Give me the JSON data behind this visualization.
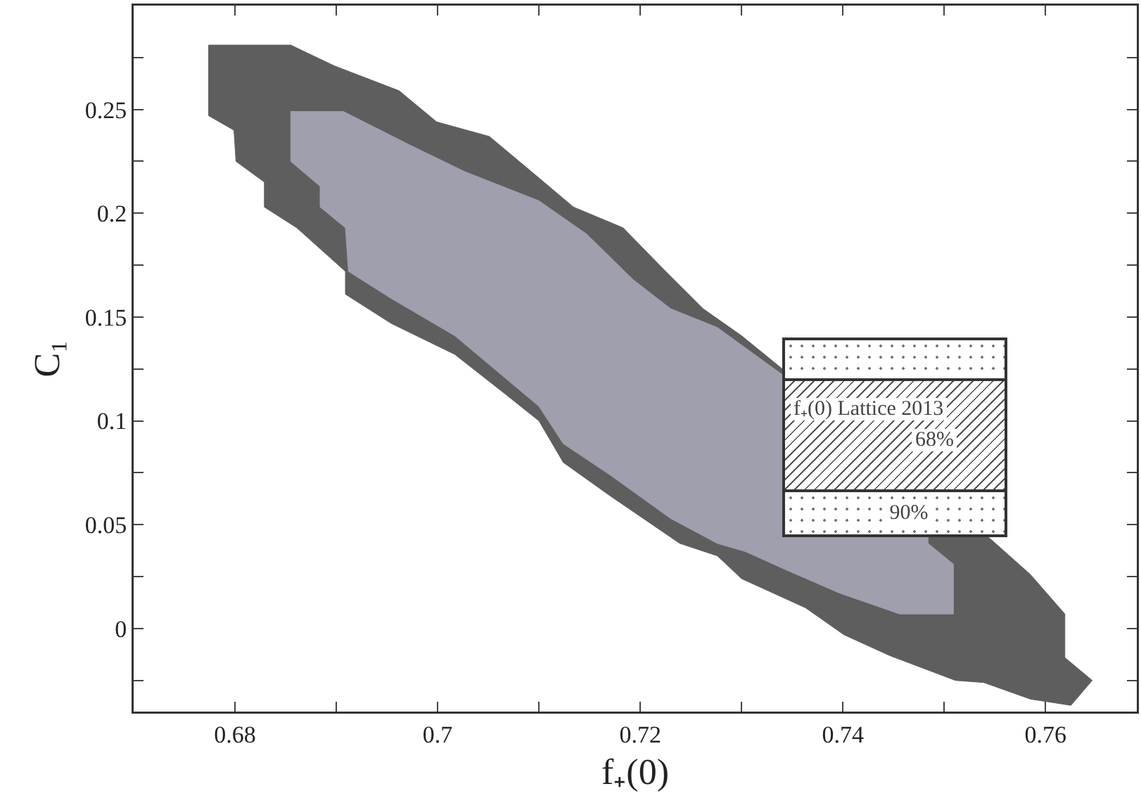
{
  "chart_data": {
    "type": "area",
    "xlabel": "f₊(0)",
    "ylabel": "C₁",
    "xlim": [
      0.67,
      0.769
    ],
    "ylim": [
      -0.04,
      0.3
    ],
    "xticks": [
      0.68,
      {
        "value": 0.69,
        "label": null
      },
      0.7,
      {
        "value": 0.71,
        "label": null
      },
      0.72,
      {
        "value": 0.73,
        "label": null
      },
      0.74,
      {
        "value": 0.75,
        "label": null
      },
      0.76
    ],
    "yticks": [
      {
        "value": -0.025,
        "label": null
      },
      0,
      {
        "value": 0.025,
        "label": null
      },
      0.05,
      {
        "value": 0.075,
        "label": null
      },
      0.1,
      {
        "value": 0.125,
        "label": null
      },
      0.15,
      {
        "value": 0.175,
        "label": null
      },
      0.2,
      {
        "value": 0.225,
        "label": null
      },
      0.25,
      {
        "value": 0.275,
        "label": null
      }
    ],
    "grid": false,
    "annotations": [
      "f₊(0) Lattice 2013",
      "68%",
      "90%"
    ],
    "series": [
      {
        "color": "#5e5e5e",
        "x": [
          0.6774,
          0.6855,
          0.6898,
          0.6962,
          0.6999,
          0.7051,
          0.71,
          0.7134,
          0.7183,
          0.7221,
          0.7262,
          0.73,
          0.7539,
          0.7585,
          0.7619,
          0.7619,
          0.7646,
          0.7625,
          0.7585,
          0.7539,
          0.7511,
          0.7446,
          0.7401,
          0.7363,
          0.73,
          0.7276,
          0.7239,
          0.717,
          0.7124,
          0.71,
          0.7064,
          0.7017,
          0.6954,
          0.6909,
          0.6909,
          0.6861,
          0.6829,
          0.6829,
          0.6801,
          0.6799,
          0.6774,
          0.6774
        ],
        "values": [
          0.281,
          0.281,
          0.271,
          0.259,
          0.244,
          0.237,
          0.217,
          0.203,
          0.193,
          0.174,
          0.154,
          0.141,
          0.046,
          0.026,
          0.007,
          -0.014,
          -0.025,
          -0.037,
          -0.034,
          -0.026,
          -0.025,
          -0.013,
          -0.003,
          0.01,
          0.024,
          0.035,
          0.041,
          0.064,
          0.08,
          0.1,
          0.114,
          0.132,
          0.147,
          0.161,
          0.172,
          0.193,
          0.203,
          0.215,
          0.225,
          0.24,
          0.247,
          0.281
        ]
      },
      {
        "color": "#a09fae",
        "x": [
          0.6855,
          0.6907,
          0.6972,
          0.7027,
          0.71,
          0.7147,
          0.7193,
          0.723,
          0.7276,
          0.7341,
          0.7484,
          0.7484,
          0.7509,
          0.7509,
          0.7456,
          0.7397,
          0.7345,
          0.7304,
          0.7276,
          0.723,
          0.717,
          0.7124,
          0.71,
          0.7078,
          0.7017,
          0.6954,
          0.6912,
          0.6909,
          0.6884,
          0.6884,
          0.6855,
          0.6855
        ],
        "values": [
          0.249,
          0.249,
          0.233,
          0.22,
          0.206,
          0.19,
          0.168,
          0.154,
          0.145,
          0.122,
          0.046,
          0.041,
          0.031,
          0.007,
          0.007,
          0.017,
          0.028,
          0.037,
          0.041,
          0.053,
          0.074,
          0.089,
          0.107,
          0.116,
          0.141,
          0.159,
          0.172,
          0.193,
          0.203,
          0.213,
          0.225,
          0.249
        ]
      }
    ]
  }
}
